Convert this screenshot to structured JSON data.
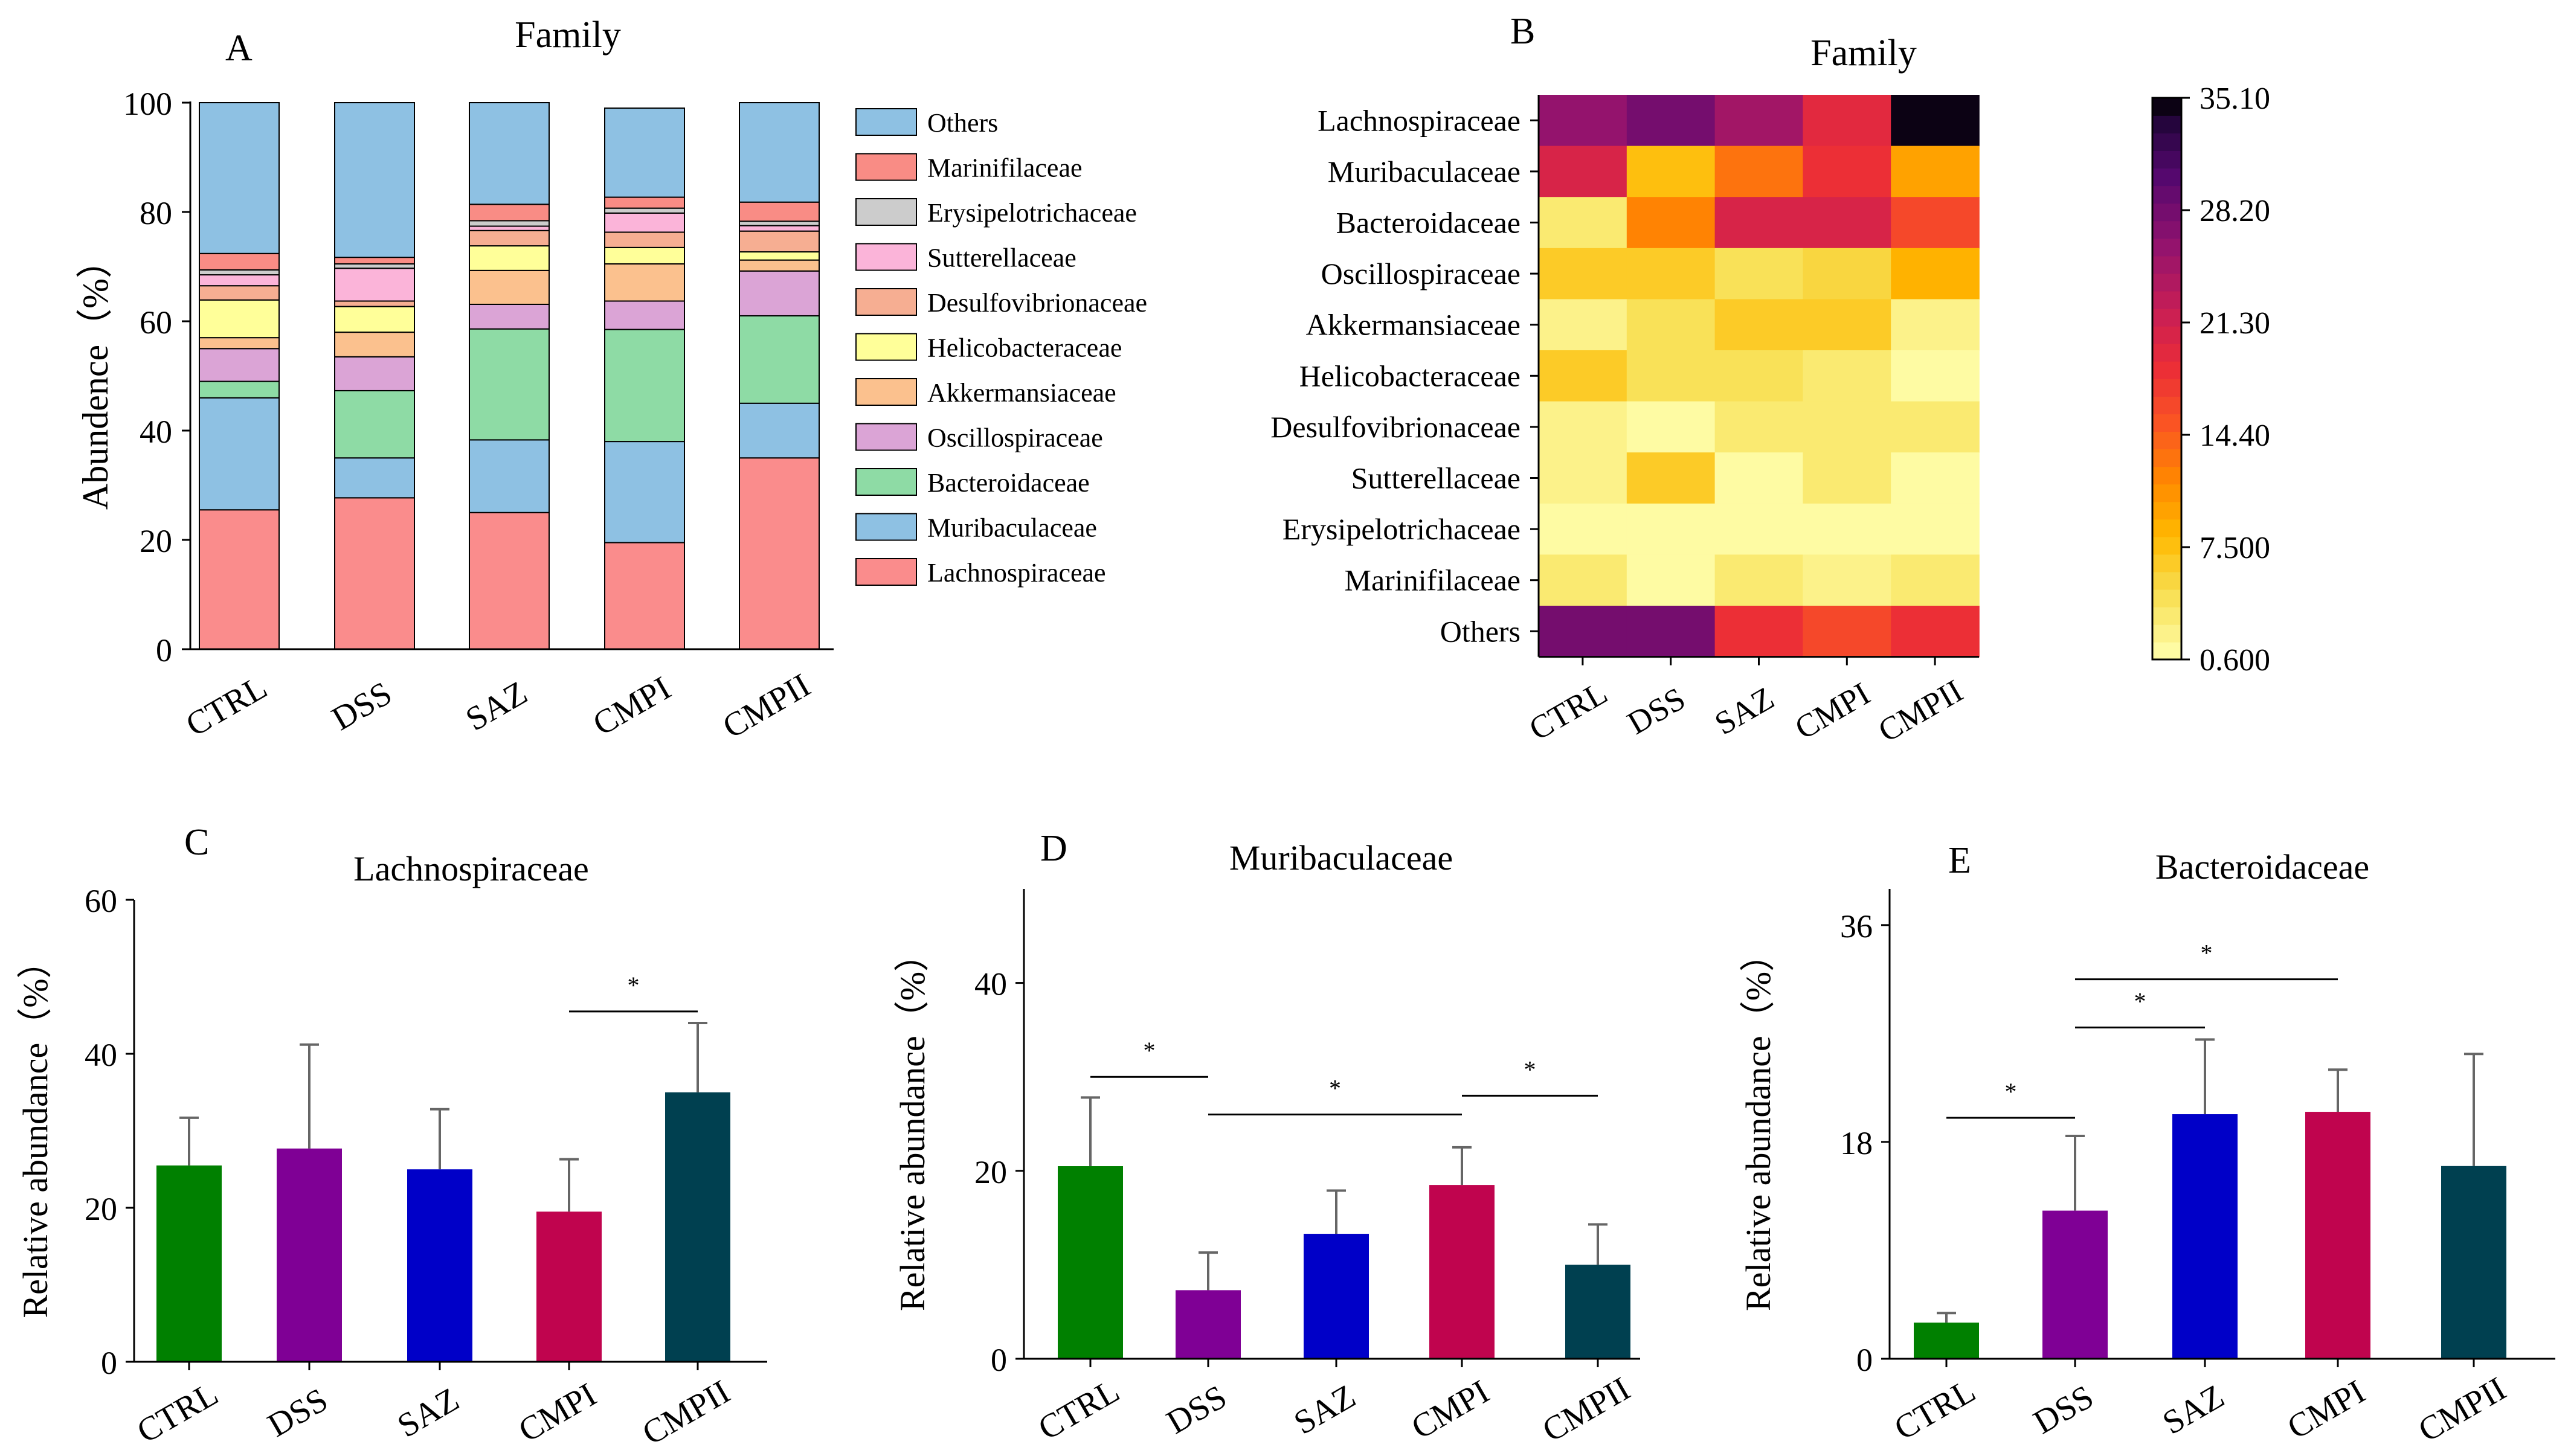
{
  "chart_data": [
    {
      "panel": "A",
      "type": "bar",
      "stacked": true,
      "title": "Family",
      "xlabel": "",
      "ylabel": "Abundence（%）",
      "ylim": [
        0,
        100
      ],
      "yticks": [
        "0",
        "20",
        "40",
        "60",
        "80",
        "100"
      ],
      "categories": [
        "CTRL",
        "DSS",
        "SAZ",
        "CMPI",
        "CMPII"
      ],
      "legend_position": "right",
      "series": [
        {
          "name": "Lachnospiraceae",
          "color": "#FA8C8C",
          "values": [
            25.5,
            27.7,
            25.0,
            19.5,
            35.0
          ]
        },
        {
          "name": "Muribaculaceae",
          "color": "#8EC1E3",
          "values": [
            20.5,
            7.3,
            13.3,
            18.5,
            10.0
          ]
        },
        {
          "name": "Bacteroidaceae",
          "color": "#8EDBA5",
          "values": [
            3.0,
            12.3,
            20.3,
            20.5,
            16.0
          ]
        },
        {
          "name": "Oscillospiraceae",
          "color": "#DBA4D6",
          "values": [
            6.0,
            6.2,
            4.5,
            5.2,
            8.2
          ]
        },
        {
          "name": "Akkermansiaceae",
          "color": "#FBC18E",
          "values": [
            2.0,
            4.5,
            6.2,
            6.8,
            2.0
          ]
        },
        {
          "name": "Helicobacteraceae",
          "color": "#FFFF99",
          "values": [
            6.9,
            4.7,
            4.5,
            3.0,
            1.5
          ]
        },
        {
          "name": "Desulfovibrionaceae",
          "color": "#F6AE92",
          "values": [
            2.6,
            1.0,
            2.8,
            2.8,
            3.8
          ]
        },
        {
          "name": "Sutterellaceae",
          "color": "#FBB4D9",
          "values": [
            2.0,
            6.0,
            0.8,
            3.5,
            1.0
          ]
        },
        {
          "name": "Erysipelotrichaceae",
          "color": "#CCCCCC",
          "values": [
            0.9,
            0.8,
            1.0,
            0.9,
            0.8
          ]
        },
        {
          "name": "Marinifilaceae",
          "color": "#F98C85",
          "values": [
            3.0,
            1.2,
            3.0,
            2.0,
            3.5
          ]
        },
        {
          "name": "Others",
          "color": "#8EC1E3",
          "values": [
            27.6,
            28.3,
            18.6,
            16.3,
            18.2
          ]
        }
      ]
    },
    {
      "panel": "B",
      "type": "heatmap",
      "title": "Family",
      "x_categories": [
        "CTRL",
        "DSS",
        "SAZ",
        "CMPI",
        "CMPII"
      ],
      "y_categories": [
        "Lachnospiraceae",
        "Muribaculaceae",
        "Bacteroidaceae",
        "Oscillospiraceae",
        "Akkermansiaceae",
        "Helicobacteraceae",
        "Desulfovibrionaceae",
        "Sutterellaceae",
        "Erysipelotrichaceae",
        "Marinifilaceae",
        "Others"
      ],
      "values": [
        [
          25.5,
          27.7,
          25.0,
          19.5,
          35.0
        ],
        [
          20.5,
          7.3,
          13.3,
          18.5,
          10.0
        ],
        [
          3.0,
          12.3,
          20.3,
          20.5,
          16.0
        ],
        [
          6.0,
          6.2,
          4.5,
          5.2,
          8.2
        ],
        [
          2.0,
          4.5,
          6.2,
          6.8,
          2.0
        ],
        [
          6.9,
          4.7,
          4.5,
          3.0,
          1.5
        ],
        [
          2.6,
          1.0,
          2.8,
          2.8,
          3.8
        ],
        [
          2.0,
          6.0,
          0.8,
          3.5,
          1.0
        ],
        [
          0.9,
          0.8,
          1.0,
          0.9,
          0.8
        ],
        [
          3.0,
          1.2,
          3.0,
          2.0,
          3.5
        ],
        [
          27.6,
          28.3,
          18.6,
          16.3,
          18.2
        ]
      ],
      "colorbar": {
        "min": 0.6,
        "max": 35.1,
        "tick_labels": [
          "0.600",
          "7.500",
          "14.40",
          "21.30",
          "28.20",
          "35.10"
        ],
        "tick_values": [
          0.6,
          7.5,
          14.4,
          21.3,
          28.2,
          35.1
        ],
        "levels": 32,
        "legend_position": "right"
      }
    },
    {
      "panel": "C",
      "type": "bar",
      "title": "Lachnospiraceae",
      "xlabel": "",
      "ylabel": "Relative  abundance（%）",
      "ylim": [
        0,
        60
      ],
      "yticks": [
        "0",
        "20",
        "40",
        "60"
      ],
      "categories": [
        "CTRL",
        "DSS",
        "SAZ",
        "CMPI",
        "CMPII"
      ],
      "colors": [
        "#008000",
        "#7F0095",
        "#0000C8",
        "#C0044E",
        "#004050"
      ],
      "values": [
        25.5,
        27.7,
        25.0,
        19.5,
        35.0
      ],
      "errors": [
        6.2,
        13.5,
        7.8,
        6.8,
        9.0
      ],
      "significance": [
        {
          "from": "CMPI",
          "to": "CMPII",
          "y": 45.5,
          "label": "*"
        }
      ]
    },
    {
      "panel": "D",
      "type": "bar",
      "title": "Muribaculaceae",
      "xlabel": "",
      "ylabel": "Relative  abundance（%）",
      "ylim": [
        0,
        50
      ],
      "yticks": [
        "0",
        "20",
        "40"
      ],
      "categories": [
        "CTRL",
        "DSS",
        "SAZ",
        "CMPI",
        "CMPII"
      ],
      "colors": [
        "#008000",
        "#7F0095",
        "#0000C8",
        "#C0044E",
        "#004050"
      ],
      "values": [
        20.5,
        7.3,
        13.3,
        18.5,
        10.0
      ],
      "errors": [
        7.3,
        4.0,
        4.6,
        4.0,
        4.3
      ],
      "significance": [
        {
          "from": "CTRL",
          "to": "DSS",
          "y": 30.0,
          "label": "*"
        },
        {
          "from": "DSS",
          "to": "CMPI",
          "y": 26.0,
          "label": "*"
        },
        {
          "from": "CMPI",
          "to": "CMPII",
          "y": 28.0,
          "label": "*"
        }
      ]
    },
    {
      "panel": "E",
      "type": "bar",
      "title": "Bacteroidaceae",
      "xlabel": "",
      "ylabel": "Relative  abundance（%）",
      "ylim": [
        0,
        39
      ],
      "yticks": [
        "0",
        "18",
        "36"
      ],
      "categories": [
        "CTRL",
        "DSS",
        "SAZ",
        "CMPI",
        "CMPII"
      ],
      "colors": [
        "#008000",
        "#7F0095",
        "#0000C8",
        "#C0044E",
        "#004050"
      ],
      "values": [
        3.0,
        12.3,
        20.3,
        20.5,
        16.0
      ],
      "errors": [
        0.8,
        6.2,
        6.2,
        3.5,
        9.3
      ],
      "significance": [
        {
          "from": "CTRL",
          "to": "DSS",
          "y": 20.0,
          "label": "*"
        },
        {
          "from": "DSS",
          "to": "SAZ",
          "y": 27.5,
          "label": "*"
        },
        {
          "from": "DSS",
          "to": "CMPI",
          "y": 31.5,
          "label": "*"
        }
      ]
    }
  ],
  "labels": {
    "A": "A",
    "B": "B",
    "C": "C",
    "D": "D",
    "E": "E"
  },
  "legendA_order": [
    "Others",
    "Marinifilaceae",
    "Erysipelotrichaceae",
    "Sutterellaceae",
    "Desulfovibrionaceae",
    "Helicobacteraceae",
    "Akkermansiaceae",
    "Oscillospiraceae",
    "Bacteroidaceae",
    "Muribaculaceae",
    "Lachnospiraceae"
  ]
}
